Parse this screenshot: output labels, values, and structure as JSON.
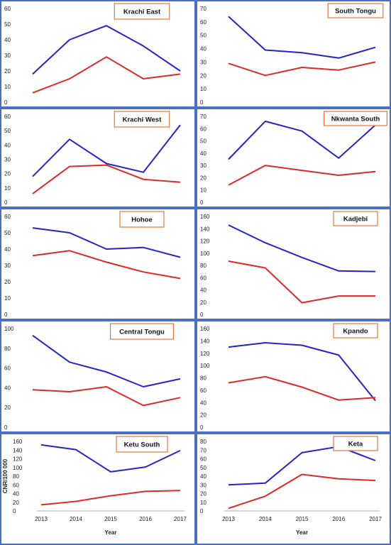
{
  "colors": {
    "series_a": "#2323d4",
    "series_b": "#e12828",
    "panel_border": "#4a6fc7",
    "title_border": "#e8743b"
  },
  "chart_data": [
    {
      "type": "line",
      "title": "Krachi East",
      "x": [
        2013,
        2014,
        2015,
        2016,
        2017
      ],
      "ylim": [
        0,
        60
      ],
      "yticks": [
        0,
        10,
        20,
        30,
        40,
        50,
        60
      ],
      "series": [
        {
          "values": [
            18,
            40,
            49,
            36,
            20
          ]
        },
        {
          "values": [
            6,
            15,
            29,
            15,
            18
          ]
        }
      ]
    },
    {
      "type": "line",
      "title": "South Tongu",
      "x": [
        2013,
        2014,
        2015,
        2016,
        2017
      ],
      "ylim": [
        0,
        70
      ],
      "yticks": [
        0,
        10,
        20,
        30,
        40,
        50,
        60,
        70
      ],
      "series": [
        {
          "values": [
            64,
            39,
            37,
            33,
            41
          ]
        },
        {
          "values": [
            29,
            20,
            26,
            24,
            30
          ]
        }
      ]
    },
    {
      "type": "line",
      "title": "Krachi West",
      "x": [
        2013,
        2014,
        2015,
        2016,
        2017
      ],
      "ylim": [
        0,
        60
      ],
      "yticks": [
        0,
        10,
        20,
        30,
        40,
        50,
        60
      ],
      "series": [
        {
          "values": [
            18,
            44,
            27,
            21,
            54
          ]
        },
        {
          "values": [
            6,
            25,
            26,
            16,
            14
          ]
        }
      ]
    },
    {
      "type": "line",
      "title": "Nkwanta South",
      "x": [
        2013,
        2014,
        2015,
        2016,
        2017
      ],
      "ylim": [
        0,
        70
      ],
      "yticks": [
        0,
        10,
        20,
        30,
        40,
        50,
        60,
        70
      ],
      "series": [
        {
          "values": [
            35,
            66,
            58,
            36,
            63
          ]
        },
        {
          "values": [
            14,
            30,
            26,
            22,
            25
          ]
        }
      ]
    },
    {
      "type": "line",
      "title": "Hohoe",
      "x": [
        2013,
        2014,
        2015,
        2016,
        2017
      ],
      "ylim": [
        0,
        60
      ],
      "yticks": [
        0,
        10,
        20,
        30,
        40,
        50,
        60
      ],
      "series": [
        {
          "values": [
            53,
            50,
            40,
            41,
            35
          ]
        },
        {
          "values": [
            36,
            39,
            32,
            26,
            22
          ]
        }
      ]
    },
    {
      "type": "line",
      "title": "Kadjebi",
      "x": [
        2013,
        2014,
        2015,
        2016,
        2017
      ],
      "ylim": [
        0,
        160
      ],
      "yticks": [
        0,
        20,
        40,
        60,
        80,
        100,
        120,
        140,
        160
      ],
      "series": [
        {
          "values": [
            146,
            117,
            93,
            71,
            70
          ]
        },
        {
          "values": [
            87,
            76,
            19,
            30,
            30
          ]
        }
      ]
    },
    {
      "type": "line",
      "title": "Central Tongu",
      "x": [
        2013,
        2014,
        2015,
        2016,
        2017
      ],
      "ylim": [
        0,
        100
      ],
      "yticks": [
        0,
        20,
        40,
        60,
        80,
        100
      ],
      "series": [
        {
          "values": [
            93,
            66,
            56,
            41,
            49
          ]
        },
        {
          "values": [
            38,
            36,
            41,
            22,
            30
          ]
        }
      ]
    },
    {
      "type": "line",
      "title": "Kpando",
      "x": [
        2013,
        2014,
        2015,
        2016,
        2017
      ],
      "ylim": [
        0,
        160
      ],
      "yticks": [
        0,
        20,
        40,
        60,
        80,
        100,
        120,
        140,
        160
      ],
      "series": [
        {
          "values": [
            130,
            137,
            133,
            117,
            43
          ]
        },
        {
          "values": [
            72,
            82,
            65,
            44,
            48
          ]
        }
      ]
    },
    {
      "type": "line",
      "title": "Ketu South",
      "x": [
        2013,
        2014,
        2015,
        2016,
        2017
      ],
      "xticks": [
        "2013",
        "2014",
        "2015",
        "2016",
        "2017"
      ],
      "xlabel": "Year",
      "ylabel": "CNR/100 000",
      "ylim": [
        0,
        160
      ],
      "yticks": [
        0,
        20,
        40,
        60,
        80,
        100,
        120,
        140,
        160
      ],
      "series": [
        {
          "values": [
            152,
            141,
            90,
            101,
            139
          ]
        },
        {
          "values": [
            14,
            22,
            35,
            45,
            47
          ]
        }
      ]
    },
    {
      "type": "line",
      "title": "Keta",
      "x": [
        2013,
        2014,
        2015,
        2016,
        2017
      ],
      "xticks": [
        "2013",
        "2014",
        "2015",
        "2016",
        "2017"
      ],
      "xlabel": "Year",
      "ylim": [
        0,
        80
      ],
      "yticks": [
        0,
        10,
        20,
        30,
        40,
        50,
        60,
        70,
        80
      ],
      "series": [
        {
          "values": [
            30,
            32,
            67,
            74,
            58
          ]
        },
        {
          "values": [
            3,
            17,
            42,
            37,
            35
          ]
        }
      ]
    }
  ]
}
